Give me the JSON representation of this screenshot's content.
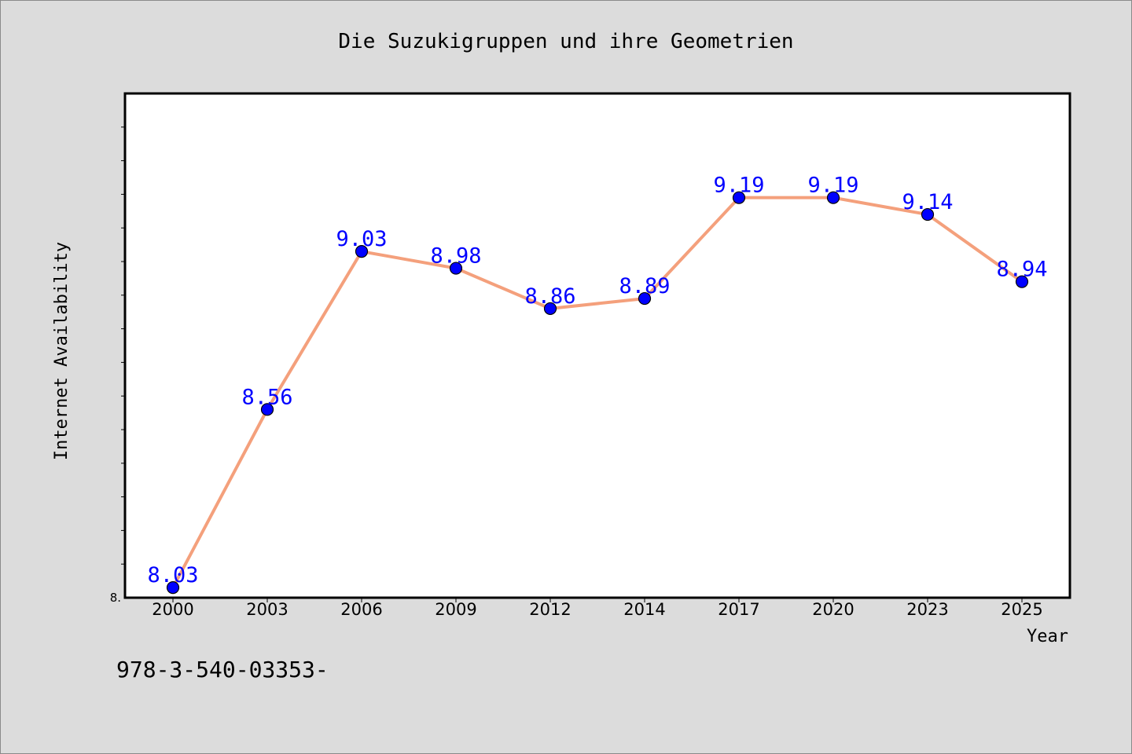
{
  "chart_data": {
    "type": "line",
    "title": "Die Suzukigruppen und ihre Geometrien",
    "xlabel": "Year",
    "ylabel": "Internet Availability",
    "categories": [
      "2000",
      "2003",
      "2006",
      "2009",
      "2012",
      "2014",
      "2017",
      "2020",
      "2023",
      "2025"
    ],
    "values": [
      8.03,
      8.56,
      9.03,
      8.98,
      8.86,
      8.89,
      9.19,
      9.19,
      9.14,
      8.94
    ],
    "data_labels": [
      "8.03",
      "8.56",
      "9.03",
      "8.98",
      "8.86",
      "8.89",
      "9.19",
      "9.19",
      "9.14",
      "8.94"
    ],
    "ylim": [
      8.0,
      9.5
    ],
    "y_tick_label": "8.",
    "grid": false,
    "legend": "none",
    "line_color": "#f4a07c",
    "marker_color": "#0000ff",
    "label_color": "#0000ff"
  },
  "footer_text": "978-3-540-03353-"
}
